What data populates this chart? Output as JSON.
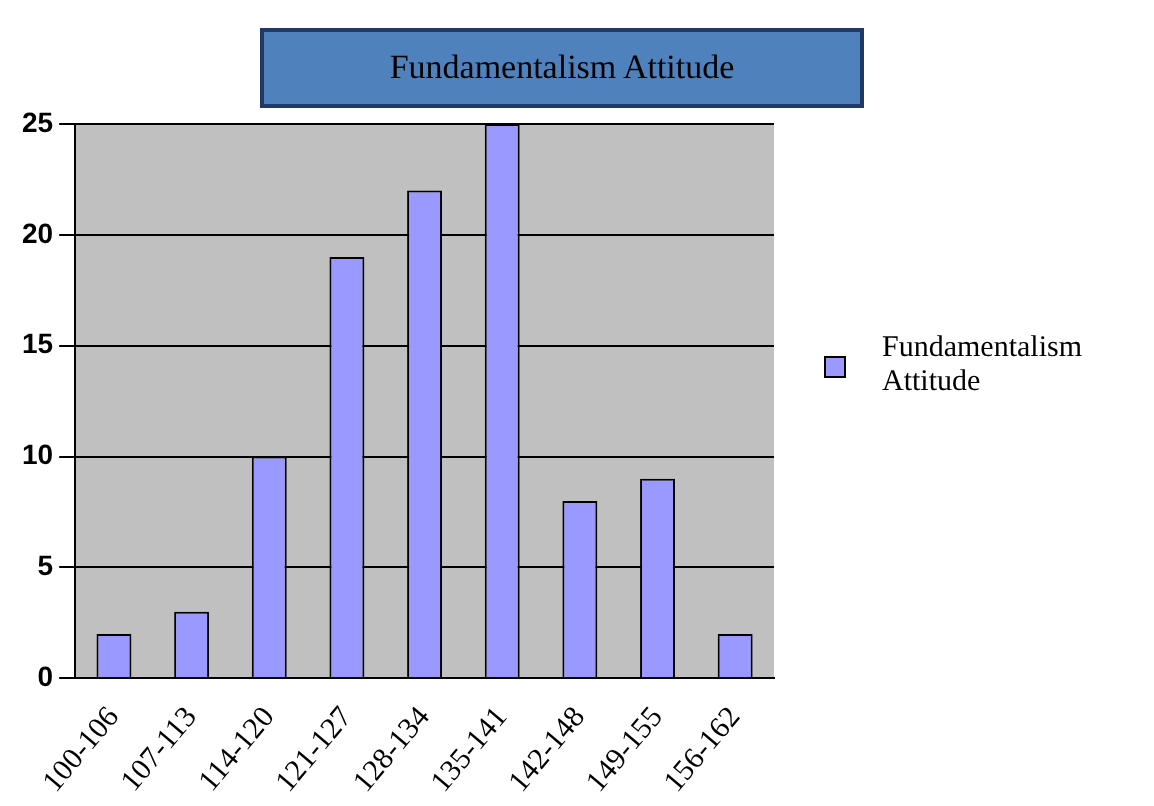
{
  "chart_data": {
    "type": "bar",
    "title": "Fundamentalism Attitude",
    "categories": [
      "100-106",
      "107-113",
      "114-120",
      "121-127",
      "128-134",
      "135-141",
      "142-148",
      "149-155",
      "156-162"
    ],
    "series": [
      {
        "name": "Fundamentalism Attitude",
        "color": "#9999ff",
        "values": [
          2,
          3,
          10,
          19,
          22,
          25,
          8,
          9,
          2
        ]
      }
    ],
    "ylim": [
      0,
      25
    ],
    "yticks": [
      0,
      5,
      10,
      15,
      20,
      25
    ],
    "grid": "y",
    "legend": "right"
  }
}
